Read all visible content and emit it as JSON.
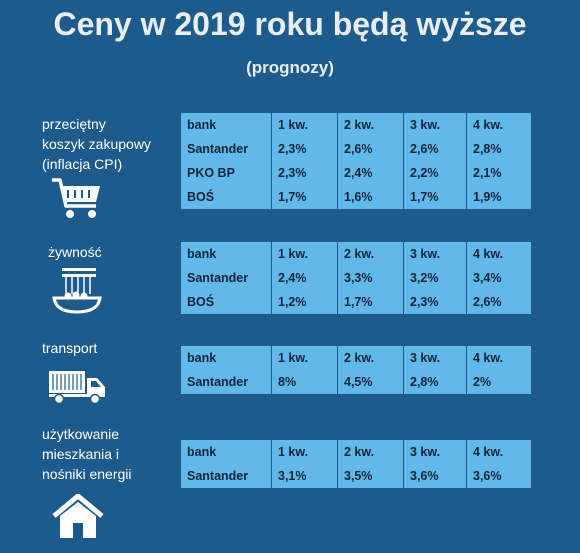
{
  "title": "Ceny w 2019 roku będą wyższe",
  "subtitle": "(prognozy)",
  "columns": [
    "bank",
    "1 kw.",
    "2 kw.",
    "3 kw.",
    "4 kw."
  ],
  "sections": [
    {
      "label": "przeciętny\nkoszyk zakupowy\n(inflacja CPI)",
      "icon": "shopping-cart-icon",
      "rows": [
        [
          "Santander",
          "2,3%",
          "2,6%",
          "2,6%",
          "2,8%"
        ],
        [
          "PKO BP",
          "2,3%",
          "2,4%",
          "2,2%",
          "2,1%"
        ],
        [
          "BOŚ",
          "1,7%",
          "1,6%",
          "1,7%",
          "1,9%"
        ]
      ]
    },
    {
      "label": "żywność",
      "icon": "food-icon",
      "rows": [
        [
          "Santander",
          "2,4%",
          "3,3%",
          "3,2%",
          "3,4%"
        ],
        [
          "BOŚ",
          "1,2%",
          "1,7%",
          "2,3%",
          "2,6%"
        ]
      ]
    },
    {
      "label": "transport",
      "icon": "truck-icon",
      "rows": [
        [
          "Santander",
          "8%",
          "4,5%",
          "2,8%",
          "2%"
        ]
      ]
    },
    {
      "label": "użytkowanie\nmieszkania i\nnośniki energii",
      "icon": "house-icon",
      "rows": [
        [
          "Santander",
          "3,1%",
          "3,5%",
          "3,6%",
          "3,6%"
        ]
      ]
    }
  ]
}
